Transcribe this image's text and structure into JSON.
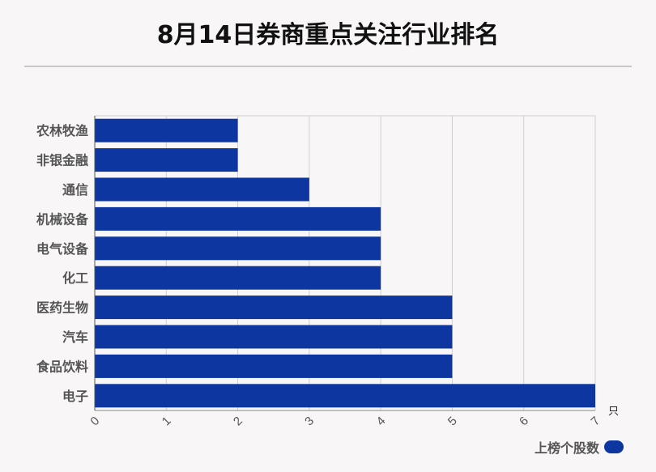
{
  "title": "8月14日券商重点关注行业排名",
  "chart_data": {
    "type": "bar",
    "orientation": "horizontal",
    "categories": [
      "农林牧渔",
      "非银金融",
      "通信",
      "机械设备",
      "电气设备",
      "化工",
      "医药生物",
      "汽车",
      "食品饮料",
      "电子"
    ],
    "series": [
      {
        "name": "上榜个股数",
        "values": [
          2,
          2,
          3,
          4,
          4,
          4,
          5,
          5,
          5,
          7
        ]
      }
    ],
    "x_ticks": [
      "0",
      "1",
      "2",
      "3",
      "4",
      "5",
      "6",
      "7"
    ],
    "xlim": [
      0,
      7
    ],
    "x_unit": "只",
    "grid": true,
    "legend_position": "bottom-right",
    "bar_color": "#0d36a1"
  }
}
